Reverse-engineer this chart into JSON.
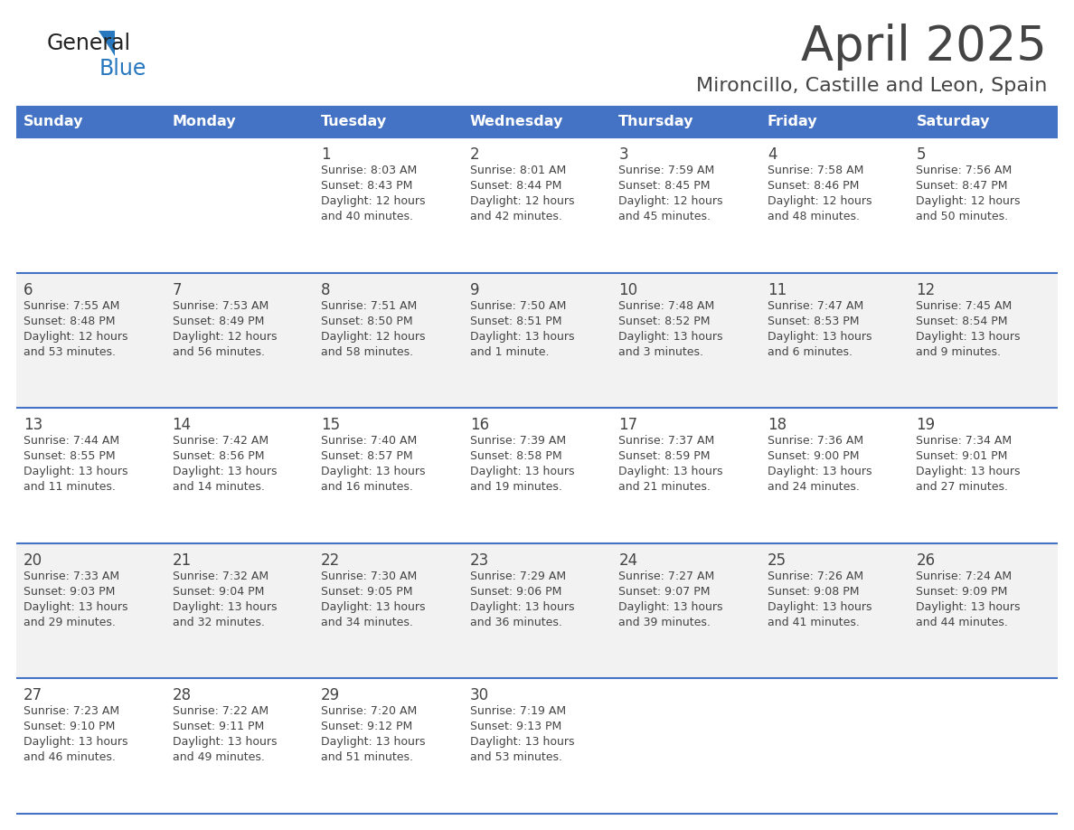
{
  "title": "April 2025",
  "subtitle": "Mironcillo, Castille and Leon, Spain",
  "header_bg": "#4472C4",
  "header_text_color": "#FFFFFF",
  "cell_bg_odd": "#F2F2F2",
  "cell_bg_even": "#FFFFFF",
  "day_names": [
    "Sunday",
    "Monday",
    "Tuesday",
    "Wednesday",
    "Thursday",
    "Friday",
    "Saturday"
  ],
  "weeks": [
    [
      {
        "day": "",
        "lines": []
      },
      {
        "day": "",
        "lines": []
      },
      {
        "day": "1",
        "lines": [
          "Sunrise: 8:03 AM",
          "Sunset: 8:43 PM",
          "Daylight: 12 hours",
          "and 40 minutes."
        ]
      },
      {
        "day": "2",
        "lines": [
          "Sunrise: 8:01 AM",
          "Sunset: 8:44 PM",
          "Daylight: 12 hours",
          "and 42 minutes."
        ]
      },
      {
        "day": "3",
        "lines": [
          "Sunrise: 7:59 AM",
          "Sunset: 8:45 PM",
          "Daylight: 12 hours",
          "and 45 minutes."
        ]
      },
      {
        "day": "4",
        "lines": [
          "Sunrise: 7:58 AM",
          "Sunset: 8:46 PM",
          "Daylight: 12 hours",
          "and 48 minutes."
        ]
      },
      {
        "day": "5",
        "lines": [
          "Sunrise: 7:56 AM",
          "Sunset: 8:47 PM",
          "Daylight: 12 hours",
          "and 50 minutes."
        ]
      }
    ],
    [
      {
        "day": "6",
        "lines": [
          "Sunrise: 7:55 AM",
          "Sunset: 8:48 PM",
          "Daylight: 12 hours",
          "and 53 minutes."
        ]
      },
      {
        "day": "7",
        "lines": [
          "Sunrise: 7:53 AM",
          "Sunset: 8:49 PM",
          "Daylight: 12 hours",
          "and 56 minutes."
        ]
      },
      {
        "day": "8",
        "lines": [
          "Sunrise: 7:51 AM",
          "Sunset: 8:50 PM",
          "Daylight: 12 hours",
          "and 58 minutes."
        ]
      },
      {
        "day": "9",
        "lines": [
          "Sunrise: 7:50 AM",
          "Sunset: 8:51 PM",
          "Daylight: 13 hours",
          "and 1 minute."
        ]
      },
      {
        "day": "10",
        "lines": [
          "Sunrise: 7:48 AM",
          "Sunset: 8:52 PM",
          "Daylight: 13 hours",
          "and 3 minutes."
        ]
      },
      {
        "day": "11",
        "lines": [
          "Sunrise: 7:47 AM",
          "Sunset: 8:53 PM",
          "Daylight: 13 hours",
          "and 6 minutes."
        ]
      },
      {
        "day": "12",
        "lines": [
          "Sunrise: 7:45 AM",
          "Sunset: 8:54 PM",
          "Daylight: 13 hours",
          "and 9 minutes."
        ]
      }
    ],
    [
      {
        "day": "13",
        "lines": [
          "Sunrise: 7:44 AM",
          "Sunset: 8:55 PM",
          "Daylight: 13 hours",
          "and 11 minutes."
        ]
      },
      {
        "day": "14",
        "lines": [
          "Sunrise: 7:42 AM",
          "Sunset: 8:56 PM",
          "Daylight: 13 hours",
          "and 14 minutes."
        ]
      },
      {
        "day": "15",
        "lines": [
          "Sunrise: 7:40 AM",
          "Sunset: 8:57 PM",
          "Daylight: 13 hours",
          "and 16 minutes."
        ]
      },
      {
        "day": "16",
        "lines": [
          "Sunrise: 7:39 AM",
          "Sunset: 8:58 PM",
          "Daylight: 13 hours",
          "and 19 minutes."
        ]
      },
      {
        "day": "17",
        "lines": [
          "Sunrise: 7:37 AM",
          "Sunset: 8:59 PM",
          "Daylight: 13 hours",
          "and 21 minutes."
        ]
      },
      {
        "day": "18",
        "lines": [
          "Sunrise: 7:36 AM",
          "Sunset: 9:00 PM",
          "Daylight: 13 hours",
          "and 24 minutes."
        ]
      },
      {
        "day": "19",
        "lines": [
          "Sunrise: 7:34 AM",
          "Sunset: 9:01 PM",
          "Daylight: 13 hours",
          "and 27 minutes."
        ]
      }
    ],
    [
      {
        "day": "20",
        "lines": [
          "Sunrise: 7:33 AM",
          "Sunset: 9:03 PM",
          "Daylight: 13 hours",
          "and 29 minutes."
        ]
      },
      {
        "day": "21",
        "lines": [
          "Sunrise: 7:32 AM",
          "Sunset: 9:04 PM",
          "Daylight: 13 hours",
          "and 32 minutes."
        ]
      },
      {
        "day": "22",
        "lines": [
          "Sunrise: 7:30 AM",
          "Sunset: 9:05 PM",
          "Daylight: 13 hours",
          "and 34 minutes."
        ]
      },
      {
        "day": "23",
        "lines": [
          "Sunrise: 7:29 AM",
          "Sunset: 9:06 PM",
          "Daylight: 13 hours",
          "and 36 minutes."
        ]
      },
      {
        "day": "24",
        "lines": [
          "Sunrise: 7:27 AM",
          "Sunset: 9:07 PM",
          "Daylight: 13 hours",
          "and 39 minutes."
        ]
      },
      {
        "day": "25",
        "lines": [
          "Sunrise: 7:26 AM",
          "Sunset: 9:08 PM",
          "Daylight: 13 hours",
          "and 41 minutes."
        ]
      },
      {
        "day": "26",
        "lines": [
          "Sunrise: 7:24 AM",
          "Sunset: 9:09 PM",
          "Daylight: 13 hours",
          "and 44 minutes."
        ]
      }
    ],
    [
      {
        "day": "27",
        "lines": [
          "Sunrise: 7:23 AM",
          "Sunset: 9:10 PM",
          "Daylight: 13 hours",
          "and 46 minutes."
        ]
      },
      {
        "day": "28",
        "lines": [
          "Sunrise: 7:22 AM",
          "Sunset: 9:11 PM",
          "Daylight: 13 hours",
          "and 49 minutes."
        ]
      },
      {
        "day": "29",
        "lines": [
          "Sunrise: 7:20 AM",
          "Sunset: 9:12 PM",
          "Daylight: 13 hours",
          "and 51 minutes."
        ]
      },
      {
        "day": "30",
        "lines": [
          "Sunrise: 7:19 AM",
          "Sunset: 9:13 PM",
          "Daylight: 13 hours",
          "and 53 minutes."
        ]
      },
      {
        "day": "",
        "lines": []
      },
      {
        "day": "",
        "lines": []
      },
      {
        "day": "",
        "lines": []
      }
    ]
  ],
  "logo_general_color": "#222222",
  "logo_blue_color": "#2878C0",
  "text_color": "#444444",
  "line_color": "#4472C4",
  "title_fontsize": 38,
  "subtitle_fontsize": 16,
  "header_fontsize": 11.5,
  "day_num_fontsize": 12,
  "cell_text_fontsize": 9
}
